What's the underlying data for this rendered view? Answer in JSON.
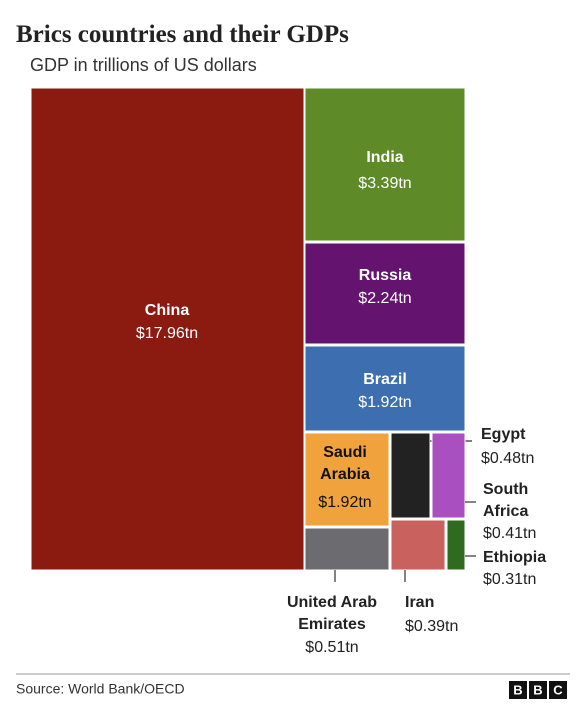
{
  "chart_data": {
    "type": "treemap",
    "title": "Brics countries and their GDPs",
    "subtitle": "GDP in trillions of US dollars",
    "categories": [
      "China",
      "India",
      "Russia",
      "Brazil",
      "Saudi Arabia",
      "United Arab Emirates",
      "Egypt",
      "South Africa",
      "Iran",
      "Ethiopia"
    ],
    "values": [
      17.96,
      3.39,
      2.24,
      1.92,
      1.92,
      0.51,
      0.48,
      0.41,
      0.39,
      0.31
    ],
    "value_labels": [
      "$17.96tn",
      "$3.39tn",
      "$2.24tn",
      "$1.92tn",
      "$1.92tn",
      "$0.51tn",
      "$0.48tn",
      "$0.41tn",
      "$0.39tn",
      "$0.31tn"
    ],
    "colors": [
      "#8b1a10",
      "#5f8a28",
      "#64146e",
      "#3d6fb0",
      "#f0a23c",
      "#6b6b70",
      "#222222",
      "#a94fc0",
      "#c9625f",
      "#2e6b1f"
    ],
    "source": "Source: World Bank/OECD",
    "logo": [
      "B",
      "B",
      "C"
    ]
  }
}
